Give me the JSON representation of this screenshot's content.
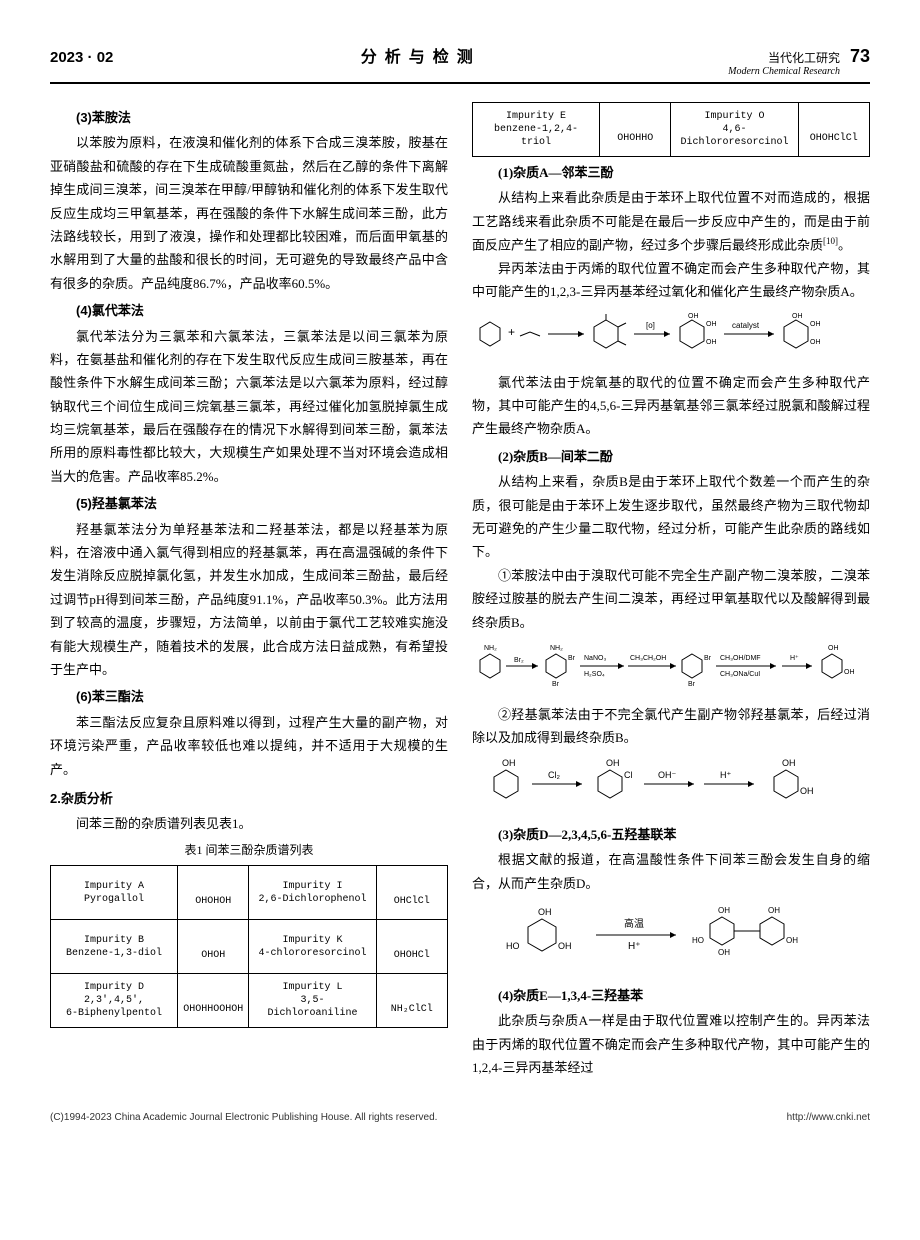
{
  "header": {
    "issue": "2023 · 02",
    "section": "分析与检测",
    "journal_cn": "当代化工研究",
    "journal_en": "Modern Chemical Research",
    "page": "73"
  },
  "left": {
    "h3": "(3)苯胺法",
    "p3": "以苯胺为原料，在液溴和催化剂的体系下合成三溴苯胺，胺基在亚硝酸盐和硫酸的存在下生成硫酸重氮盐，然后在乙醇的条件下离解掉生成间三溴苯，间三溴苯在甲醇/甲醇钠和催化剂的体系下发生取代反应生成均三甲氧基苯，再在强酸的条件下水解生成间苯三酚，此方法路线较长，用到了液溴，操作和处理都比较困难，而后面甲氧基的水解用到了大量的盐酸和很长的时间，无可避免的导致最终产品中含有很多的杂质。产品纯度86.7%，产品收率60.5%。",
    "h4": "(4)氯代苯法",
    "p4": "氯代苯法分为三氯苯和六氯苯法，三氯苯法是以间三氯苯为原料，在氨基盐和催化剂的存在下发生取代反应生成间三胺基苯，再在酸性条件下水解生成间苯三酚；六氯苯法是以六氯苯为原料，经过醇钠取代三个间位生成间三烷氧基三氯苯，再经过催化加氢脱掉氯生成均三烷氧基苯，最后在强酸存在的情况下水解得到间苯三酚，氯苯法所用的原料毒性都比较大，大规模生产如果处理不当对环境会造成相当大的危害。产品收率85.2%。",
    "h5": "(5)羟基氯苯法",
    "p5": "羟基氯苯法分为单羟基苯法和二羟基苯法，都是以羟基苯为原料，在溶液中通入氯气得到相应的羟基氯苯，再在高温强碱的条件下发生消除反应脱掉氯化氢，并发生水加成，生成间苯三酚盐，最后经过调节pH得到间苯三酚，产品纯度91.1%，产品收率50.3%。此方法用到了较高的温度，步骤短，方法简单，以前由于氯代工艺较难实施没有能大规模生产，随着技术的发展，此合成方法日益成熟，有希望投于生产中。",
    "h6": "(6)苯三酯法",
    "p6": "苯三酯法反应复杂且原料难以得到，过程产生大量的副产物，对环境污染严重，产品收率较低也难以提纯，并不适用于大规模的生产。",
    "sec2": "2.杂质分析",
    "p_sec2": "间苯三酚的杂质谱列表见表1。",
    "table_caption": "表1 间苯三酚杂质谱列表",
    "table": {
      "rows": [
        {
          "n1": "Impurity A\nPyrogallol",
          "n2": "Impurity I\n2,6-Dichlorophenol"
        },
        {
          "n1": "Impurity B\nBenzene-1,3-diol",
          "n2": "Impurity K\n4-chlororesorcinol"
        },
        {
          "n1": "Impurity D\n2,3',4,5',\n6-Biphenylpentol",
          "n2": "Impurity L\n3,5-\nDichloroaniline"
        }
      ]
    }
  },
  "right": {
    "table_ext": {
      "n1": "Impurity E\nbenzene-1,2,4-\ntriol",
      "n2": "Impurity O\n4,6-\nDichlororesorcinol"
    },
    "hA": "(1)杂质A—邻苯三酚",
    "pA": "从结构上来看此杂质是由于苯环上取代位置不对而造成的，根据工艺路线来看此杂质不可能是在最后一步反应中产生的，而是由于前面反应产生了相应的副产物，经过多个步骤后最终形成此杂质",
    "pA_ref": "[10]",
    "pA_tail": "。",
    "pA2": "异丙苯法由于丙烯的取代位置不确定而会产生多种取代产物，其中可能产生的1,2,3-三异丙基苯经过氧化和催化产生最终产物杂质A。",
    "pA3": "氯代苯法由于烷氧基的取代的位置不确定而会产生多种取代产物，其中可能产生的4,5,6-三异丙基氧基邻三氯苯经过脱氯和酸解过程产生最终产物杂质A。",
    "hB": "(2)杂质B—间苯二酚",
    "pB": "从结构上来看，杂质B是由于苯环上取代个数差一个而产生的杂质，很可能是由于苯环上发生逐步取代，虽然最终产物为三取代物却无可避免的产生少量二取代物，经过分析，可能产生此杂质的路线如下。",
    "pB1": "①苯胺法中由于溴取代可能不完全生产副产物二溴苯胺，二溴苯胺经过胺基的脱去产生间二溴苯，再经过甲氧基取代以及酸解得到最终杂质B。",
    "pB2": "②羟基氯苯法由于不完全氯代产生副产物邻羟基氯苯，后经过消除以及加成得到最终杂质B。",
    "hD": "(3)杂质D—2,3,4,5,6-五羟基联苯",
    "pD": "根据文献的报道，在高温酸性条件下间苯三酚会发生自身的缩合，从而产生杂质D。",
    "hE": "(4)杂质E—1,3,4-三羟基苯",
    "pE": "此杂质与杂质A一样是由于取代位置难以控制产生的。异丙苯法由于丙烯的取代位置不确定而会产生多种取代产物，其中可能产生的1,2,4-三异丙基苯经过"
  },
  "reaction_labels": {
    "r1": {
      "o": "[o]",
      "cat": "catalyst"
    },
    "r2": {
      "br2": "Br₂",
      "nano3": "NaNO₃",
      "h2so4": "H₂SO₄",
      "ch3ch2oh": "CH₃CH₂OH",
      "ch3oh": "CH₃OH/DMF",
      "ch3ona": "CH₃ONa/CuI",
      "hplus": "H⁺"
    },
    "r3": {
      "cl2": "Cl₂",
      "oh": "OH⁻",
      "hplus": "H⁺"
    },
    "r4": {
      "hi": "高温",
      "hplus": "H⁺"
    }
  },
  "footer": {
    "left": "(C)1994-2023 China Academic Journal Electronic Publishing House. All rights reserved.",
    "right": "http://www.cnki.net"
  },
  "colors": {
    "text": "#000000",
    "background": "#ffffff",
    "rule": "#000000"
  }
}
